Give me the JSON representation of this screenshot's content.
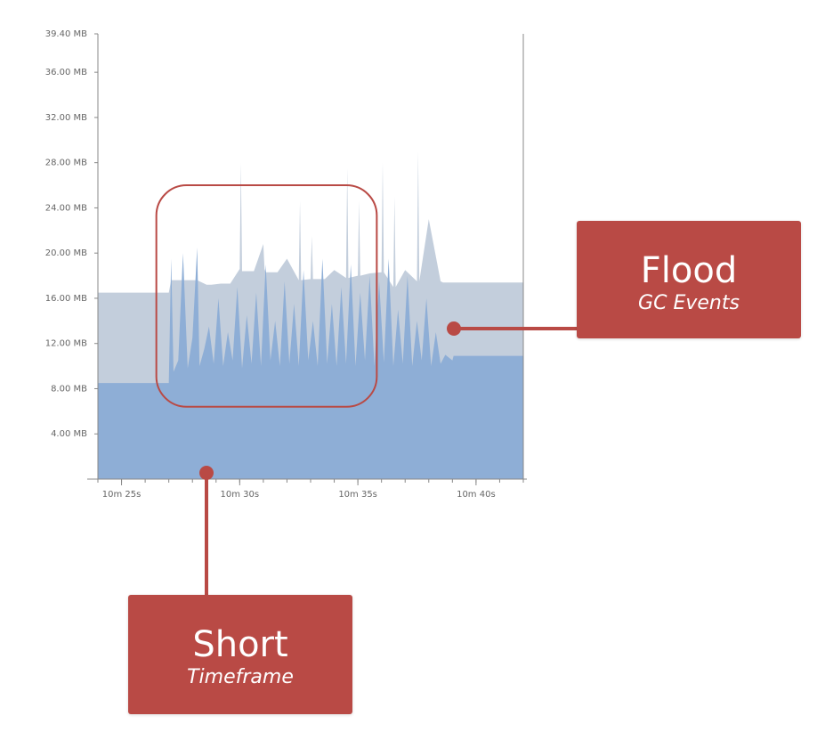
{
  "colors": {
    "heap_allocated": "#c3cedc",
    "heap_used": "#8eaed6",
    "annotation": "#b94a45",
    "axis": "#888888"
  },
  "chart_data": {
    "type": "area",
    "title": "",
    "xlabel": "",
    "ylabel": "",
    "ylim": [
      0,
      39.4
    ],
    "yticks": [
      "39.40 MB",
      "36.00 MB",
      "32.00 MB",
      "28.00 MB",
      "24.00 MB",
      "20.00 MB",
      "16.00 MB",
      "12.00 MB",
      "8.00 MB",
      "4.00 MB"
    ],
    "ytick_values": [
      39.4,
      36,
      32,
      28,
      24,
      20,
      16,
      12,
      8,
      4
    ],
    "xlim": [
      624,
      642
    ],
    "xticks": [
      "10m 25s",
      "10m 30s",
      "10m 35s",
      "10m 40s"
    ],
    "xtick_values": [
      625,
      630,
      635,
      640
    ],
    "grid": false,
    "series": [
      {
        "role": "allocated",
        "x": [
          624,
          627,
          627.1,
          628.2,
          628.6,
          628.8,
          629.2,
          629.6,
          630,
          630.05,
          630.1,
          630.6,
          631,
          631.05,
          631.1,
          631.6,
          632,
          632.5,
          632.55,
          632.6,
          633,
          633.05,
          633.1,
          633.6,
          634,
          634.5,
          634.55,
          634.6,
          635,
          635.05,
          635.1,
          635.5,
          636,
          636.05,
          636.1,
          636.5,
          636.55,
          636.6,
          637,
          637.5,
          637.55,
          637.6,
          638,
          638.5,
          638.6,
          639,
          642
        ],
        "values": [
          16.5,
          16.5,
          17.6,
          17.6,
          17.2,
          17.2,
          17.3,
          17.3,
          18.6,
          28.0,
          18.4,
          18.4,
          20.8,
          18.6,
          18.3,
          18.3,
          19.5,
          17.6,
          24.6,
          17.6,
          17.7,
          21.5,
          17.7,
          17.7,
          18.5,
          17.8,
          27.5,
          17.8,
          18.0,
          24.6,
          18.0,
          18.2,
          18.3,
          28.0,
          18.3,
          17.0,
          25.0,
          17.0,
          18.5,
          17.5,
          29.0,
          17.5,
          23.0,
          17.5,
          17.4,
          17.4,
          17.4
        ]
      },
      {
        "role": "used",
        "x": [
          624,
          627,
          627.1,
          627.2,
          627.4,
          627.6,
          627.8,
          628,
          628.2,
          628.3,
          628.5,
          628.7,
          628.9,
          629.1,
          629.3,
          629.5,
          629.7,
          629.9,
          630.1,
          630.3,
          630.5,
          630.7,
          630.9,
          631.1,
          631.3,
          631.5,
          631.7,
          631.9,
          632.1,
          632.3,
          632.5,
          632.7,
          632.9,
          633.1,
          633.3,
          633.5,
          633.7,
          633.9,
          634.1,
          634.3,
          634.5,
          634.7,
          634.9,
          635.1,
          635.3,
          635.5,
          635.7,
          635.9,
          636.1,
          636.3,
          636.5,
          636.7,
          636.9,
          637.1,
          637.3,
          637.5,
          637.7,
          637.9,
          638.1,
          638.3,
          638.5,
          638.7,
          639,
          639.05,
          642
        ],
        "values": [
          8.5,
          8.5,
          19.5,
          9.5,
          10.5,
          20.0,
          9.8,
          12.5,
          20.5,
          10.0,
          11.5,
          13.5,
          10.2,
          16.0,
          10.0,
          13.0,
          10.5,
          17.0,
          9.8,
          14.5,
          10.2,
          16.5,
          10.0,
          19.0,
          10.5,
          14.0,
          10.0,
          17.5,
          10.2,
          15.5,
          10.0,
          18.5,
          10.5,
          14.0,
          10.0,
          19.5,
          10.2,
          15.5,
          10.0,
          17.0,
          10.2,
          19.0,
          10.0,
          16.5,
          10.5,
          18.0,
          10.0,
          17.5,
          10.3,
          19.5,
          10.0,
          15.0,
          10.2,
          18.0,
          10.0,
          14.0,
          10.5,
          16.0,
          10.0,
          13.0,
          10.2,
          11.0,
          10.5,
          10.9,
          10.9
        ]
      }
    ],
    "annotations": [
      {
        "shape": "rounded-rect",
        "x_range": [
          627,
          635.8
        ],
        "y_range": [
          6.4,
          26.0
        ]
      }
    ]
  },
  "callouts": {
    "flood": {
      "title": "Flood",
      "subtitle": "GC Events"
    },
    "short": {
      "title": "Short",
      "subtitle": "Timeframe"
    }
  }
}
